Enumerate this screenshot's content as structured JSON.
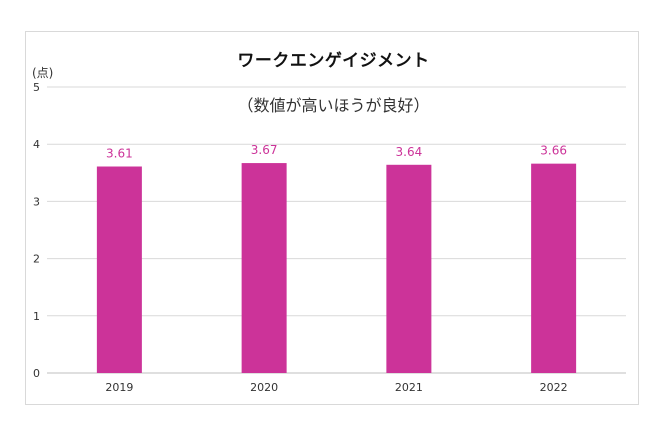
{
  "chart_data": {
    "type": "bar",
    "title": "ワークエンゲイジメント",
    "subtitle": "（数値が高いほうが良好）",
    "unit_label": "(点)",
    "categories": [
      "2019",
      "2020",
      "2021",
      "2022"
    ],
    "values": [
      3.61,
      3.67,
      3.64,
      3.66
    ],
    "value_labels": [
      "3.61",
      "3.67",
      "3.64",
      "3.66"
    ],
    "yticks": [
      "0",
      "1",
      "2",
      "3",
      "4",
      "5"
    ],
    "ylim": [
      0,
      5
    ],
    "grid": true,
    "bar_color": "#cc3399",
    "label_color": "#cc3399"
  }
}
